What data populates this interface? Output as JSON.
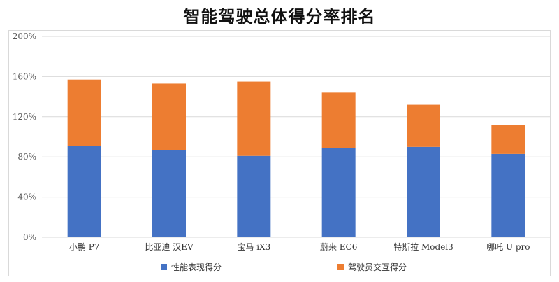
{
  "chart_data": {
    "type": "bar",
    "stacked": true,
    "title": "智能驾驶总体得分率排名",
    "categories": [
      "小鹏 P7",
      "比亚迪 汉EV",
      "宝马 iX3",
      "蔚来 EC6",
      "特斯拉 Model3",
      "哪吒 U pro"
    ],
    "series": [
      {
        "name": "性能表现得分",
        "color": "#4472C4",
        "values": [
          91,
          87,
          81,
          89,
          90,
          83
        ]
      },
      {
        "name": "驾驶员交互得分",
        "color": "#ED7D31",
        "values": [
          66,
          66,
          74,
          55,
          42,
          29
        ]
      }
    ],
    "ylim": [
      0,
      200
    ],
    "yticks": [
      "0%",
      "40%",
      "80%",
      "120%",
      "160%",
      "200%"
    ],
    "ytick_values": [
      0,
      40,
      80,
      120,
      160,
      200
    ],
    "grid": true,
    "legend_position": "bottom"
  }
}
